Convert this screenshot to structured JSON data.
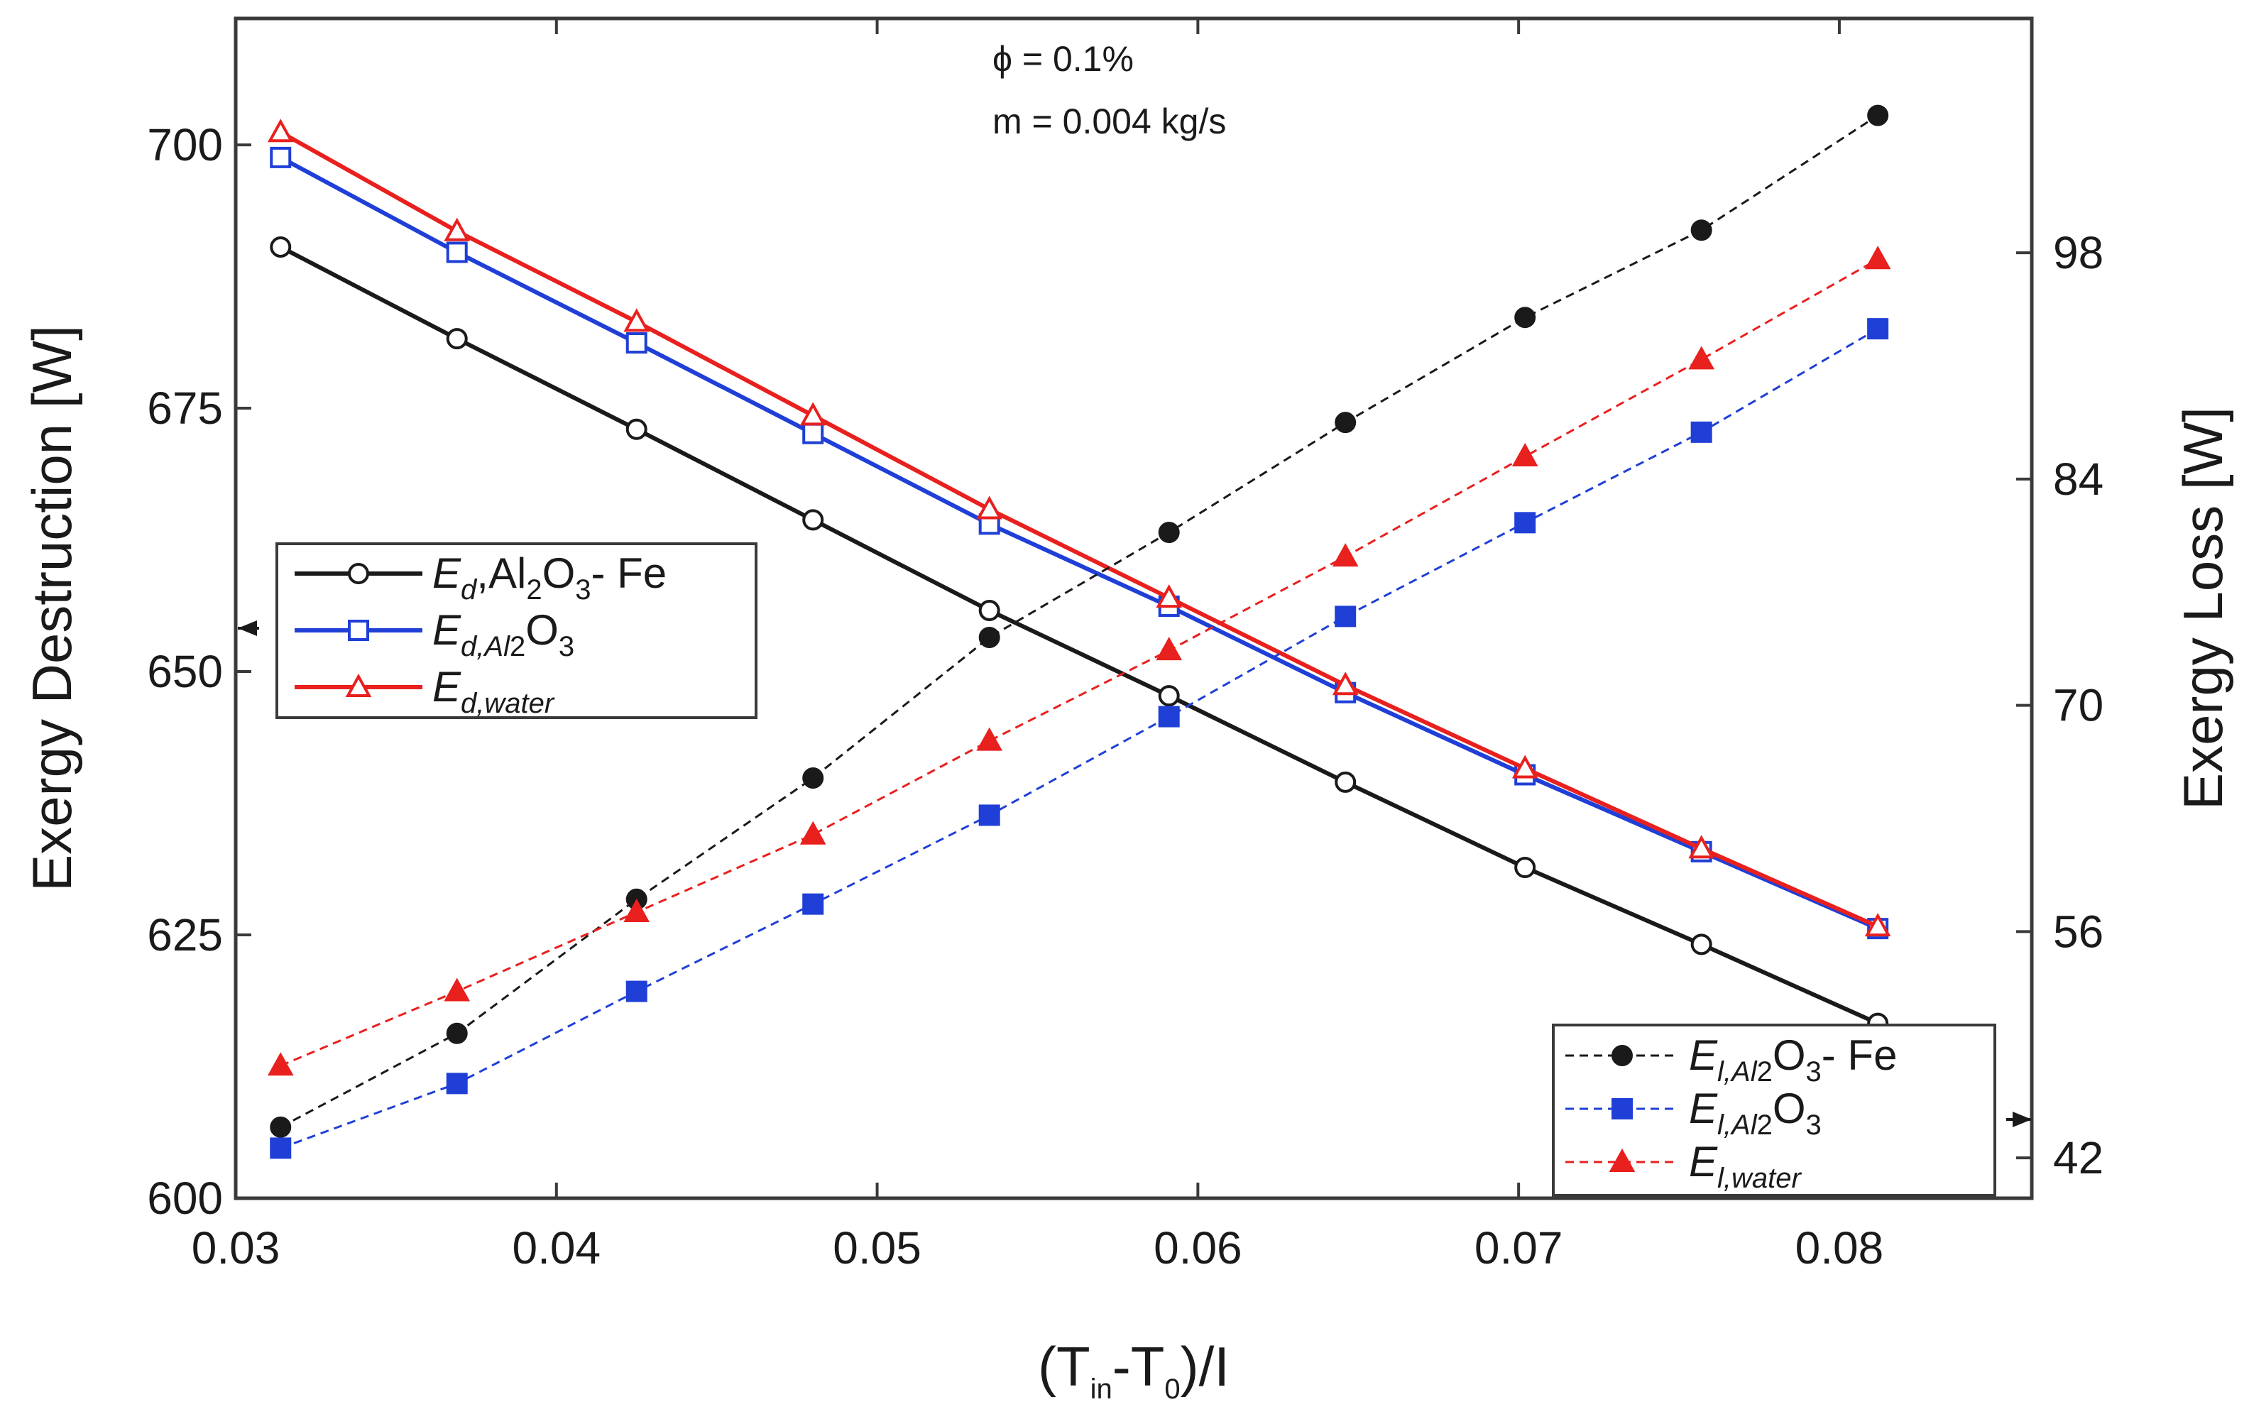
{
  "chart_data": {
    "type": "line",
    "title": "",
    "annotations": [
      "ϕ = 0.1%",
      "m = 0.004 kg/s"
    ],
    "x": [
      0.0314,
      0.0369,
      0.0425,
      0.048,
      0.0535,
      0.0591,
      0.0646,
      0.0702,
      0.0757,
      0.0812
    ],
    "xlabel": {
      "prefix": "(T",
      "sub1": "in",
      "mid": "-T",
      "sub2": "0",
      "suffix": ")/I"
    },
    "xlim": [
      0.03,
      0.086
    ],
    "xticks": [
      "0.03",
      "0.04",
      "0.05",
      "0.06",
      "0.07",
      "0.08"
    ],
    "ylabel_left": "Exergy Destruction [W]",
    "ylim_left": [
      600,
      712
    ],
    "yticks_left": [
      "600",
      "625",
      "650",
      "675",
      "700"
    ],
    "ylabel_right": "Exergy Loss [W]",
    "ylim_right": [
      39.5,
      112.5
    ],
    "yticks_right": [
      "42",
      "56",
      "70",
      "84",
      "98"
    ],
    "series": [
      {
        "name": "Ed,Al2O3- Fe",
        "axis": "left",
        "color": "#1a1a1a",
        "marker": "circle-open",
        "style": "solid",
        "values": [
          690.3,
          681.6,
          673.0,
          664.4,
          655.8,
          647.7,
          639.5,
          631.4,
          624.1,
          616.6
        ],
        "legend": {
          "main": "E",
          "sub": "d",
          "rest": ",Al",
          "sub2": "2",
          "rest2": "O",
          "sub3": "3",
          "rest3": "- Fe"
        }
      },
      {
        "name": "Ed,Al2O3",
        "axis": "left",
        "color": "#1f3fd6",
        "marker": "square-open",
        "style": "solid",
        "values": [
          698.8,
          689.8,
          681.2,
          672.6,
          664.0,
          656.2,
          648.0,
          640.2,
          632.9,
          625.6
        ],
        "legend": {
          "main": "E",
          "sub": "d,Al",
          "rest": "",
          "sub2": "2",
          "rest2": "O",
          "sub3": "3",
          "rest3": ""
        }
      },
      {
        "name": "Ed,water",
        "axis": "left",
        "color": "#e8201e",
        "marker": "triangle-open",
        "style": "solid",
        "values": [
          701.2,
          691.8,
          683.2,
          674.3,
          665.4,
          657.0,
          648.7,
          640.8,
          633.2,
          625.8
        ],
        "legend": {
          "main": "E",
          "sub": "d,water",
          "rest": "",
          "sub2": "",
          "rest2": "",
          "sub3": "",
          "rest3": ""
        }
      },
      {
        "name": "El,Al2O3- Fe",
        "axis": "right",
        "color": "#1a1a1a",
        "marker": "circle-filled",
        "style": "dashed",
        "values": [
          43.9,
          49.7,
          58.0,
          65.5,
          74.2,
          80.7,
          87.5,
          94.0,
          99.4,
          106.5
        ],
        "legend": {
          "main": "E",
          "sub": "l,Al",
          "rest": "",
          "sub2": "2",
          "rest2": "O",
          "sub3": "3",
          "rest3": "- Fe"
        }
      },
      {
        "name": "El,Al2O3",
        "axis": "right",
        "color": "#1f3fd6",
        "marker": "square-filled",
        "style": "dashed",
        "values": [
          42.6,
          46.6,
          52.3,
          57.7,
          63.2,
          69.3,
          75.5,
          81.3,
          86.9,
          93.3
        ],
        "legend": {
          "main": "E",
          "sub": "l,Al",
          "rest": "",
          "sub2": "2",
          "rest2": "O",
          "sub3": "3",
          "rest3": ""
        }
      },
      {
        "name": "El,water",
        "axis": "right",
        "color": "#e8201e",
        "marker": "triangle-filled",
        "style": "dashed",
        "values": [
          47.7,
          52.3,
          57.2,
          62.0,
          67.8,
          73.4,
          79.2,
          85.4,
          91.4,
          97.6
        ],
        "legend": {
          "main": "E",
          "sub": "l,water",
          "rest": "",
          "sub2": "",
          "rest2": "",
          "sub3": "",
          "rest3": ""
        }
      }
    ]
  }
}
